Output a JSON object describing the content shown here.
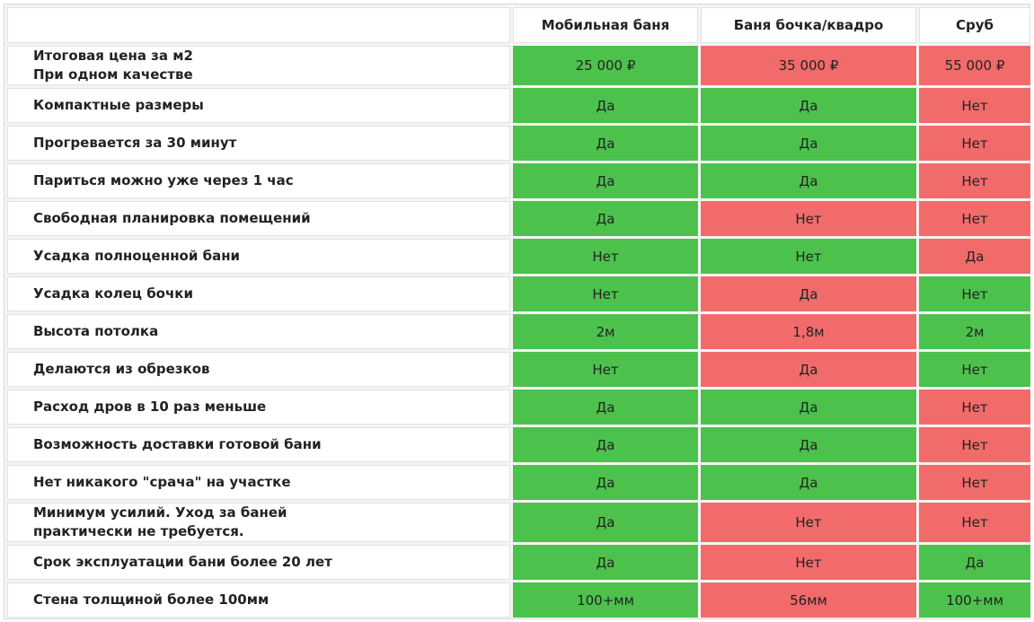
{
  "colors": {
    "good": "#4cc24c",
    "bad": "#f26b6b",
    "header_bg": "#ffffff",
    "feature_bg": "#ffffff"
  },
  "table": {
    "columns": [
      "",
      "Мобильная баня",
      "Баня бочка/квадро",
      "Сруб"
    ],
    "rows": [
      {
        "feature_line1": "Итоговая цена за м2",
        "feature_line2": "При одном качестве",
        "cells": [
          {
            "text": "25 000 ₽",
            "status": "good"
          },
          {
            "text": "35 000 ₽",
            "status": "bad"
          },
          {
            "text": "55 000 ₽",
            "status": "bad"
          }
        ]
      },
      {
        "feature_line1": "Компактные размеры",
        "feature_line2": "",
        "cells": [
          {
            "text": "Да",
            "status": "good"
          },
          {
            "text": "Да",
            "status": "good"
          },
          {
            "text": "Нет",
            "status": "bad"
          }
        ]
      },
      {
        "feature_line1": "Прогревается за 30 минут",
        "feature_line2": "",
        "cells": [
          {
            "text": "Да",
            "status": "good"
          },
          {
            "text": "Да",
            "status": "good"
          },
          {
            "text": "Нет",
            "status": "bad"
          }
        ]
      },
      {
        "feature_line1": "Париться можно уже через 1 час",
        "feature_line2": "",
        "cells": [
          {
            "text": "Да",
            "status": "good"
          },
          {
            "text": "Да",
            "status": "good"
          },
          {
            "text": "Нет",
            "status": "bad"
          }
        ]
      },
      {
        "feature_line1": "Свободная планировка помещений",
        "feature_line2": "",
        "cells": [
          {
            "text": "Да",
            "status": "good"
          },
          {
            "text": "Нет",
            "status": "bad"
          },
          {
            "text": "Нет",
            "status": "bad"
          }
        ]
      },
      {
        "feature_line1": "Усадка полноценной бани",
        "feature_line2": "",
        "cells": [
          {
            "text": "Нет",
            "status": "good"
          },
          {
            "text": "Нет",
            "status": "good"
          },
          {
            "text": "Да",
            "status": "bad"
          }
        ]
      },
      {
        "feature_line1": "Усадка колец бочки",
        "feature_line2": "",
        "cells": [
          {
            "text": "Нет",
            "status": "good"
          },
          {
            "text": "Да",
            "status": "bad"
          },
          {
            "text": "Нет",
            "status": "good"
          }
        ]
      },
      {
        "feature_line1": "Высота потолка",
        "feature_line2": "",
        "cells": [
          {
            "text": "2м",
            "status": "good"
          },
          {
            "text": "1,8м",
            "status": "bad"
          },
          {
            "text": "2м",
            "status": "good"
          }
        ]
      },
      {
        "feature_line1": "Делаются из обрезков",
        "feature_line2": "",
        "cells": [
          {
            "text": "Нет",
            "status": "good"
          },
          {
            "text": "Да",
            "status": "bad"
          },
          {
            "text": "Нет",
            "status": "good"
          }
        ]
      },
      {
        "feature_line1": "Расход дров в 10 раз меньше",
        "feature_line2": "",
        "cells": [
          {
            "text": "Да",
            "status": "good"
          },
          {
            "text": "Да",
            "status": "good"
          },
          {
            "text": "Нет",
            "status": "bad"
          }
        ]
      },
      {
        "feature_line1": "Возможность доставки готовой бани",
        "feature_line2": "",
        "cells": [
          {
            "text": "Да",
            "status": "good"
          },
          {
            "text": "Да",
            "status": "good"
          },
          {
            "text": "Нет",
            "status": "bad"
          }
        ]
      },
      {
        "feature_line1": "Нет никакого \"срача\" на участке",
        "feature_line2": "",
        "cells": [
          {
            "text": "Да",
            "status": "good"
          },
          {
            "text": "Да",
            "status": "good"
          },
          {
            "text": "Нет",
            "status": "bad"
          }
        ]
      },
      {
        "feature_line1": "Минимум усилий. Уход за баней",
        "feature_line2": "практически не требуется.",
        "cells": [
          {
            "text": "Да",
            "status": "good"
          },
          {
            "text": "Нет",
            "status": "bad"
          },
          {
            "text": "Нет",
            "status": "bad"
          }
        ]
      },
      {
        "feature_line1": "Срок эксплуатации бани более 20 лет",
        "feature_line2": "",
        "cells": [
          {
            "text": "Да",
            "status": "good"
          },
          {
            "text": "Нет",
            "status": "bad"
          },
          {
            "text": "Да",
            "status": "good"
          }
        ]
      },
      {
        "feature_line1": "Стена толщиной более 100мм",
        "feature_line2": "",
        "cells": [
          {
            "text": "100+мм",
            "status": "good"
          },
          {
            "text": "56мм",
            "status": "bad"
          },
          {
            "text": "100+мм",
            "status": "good"
          }
        ]
      }
    ]
  }
}
